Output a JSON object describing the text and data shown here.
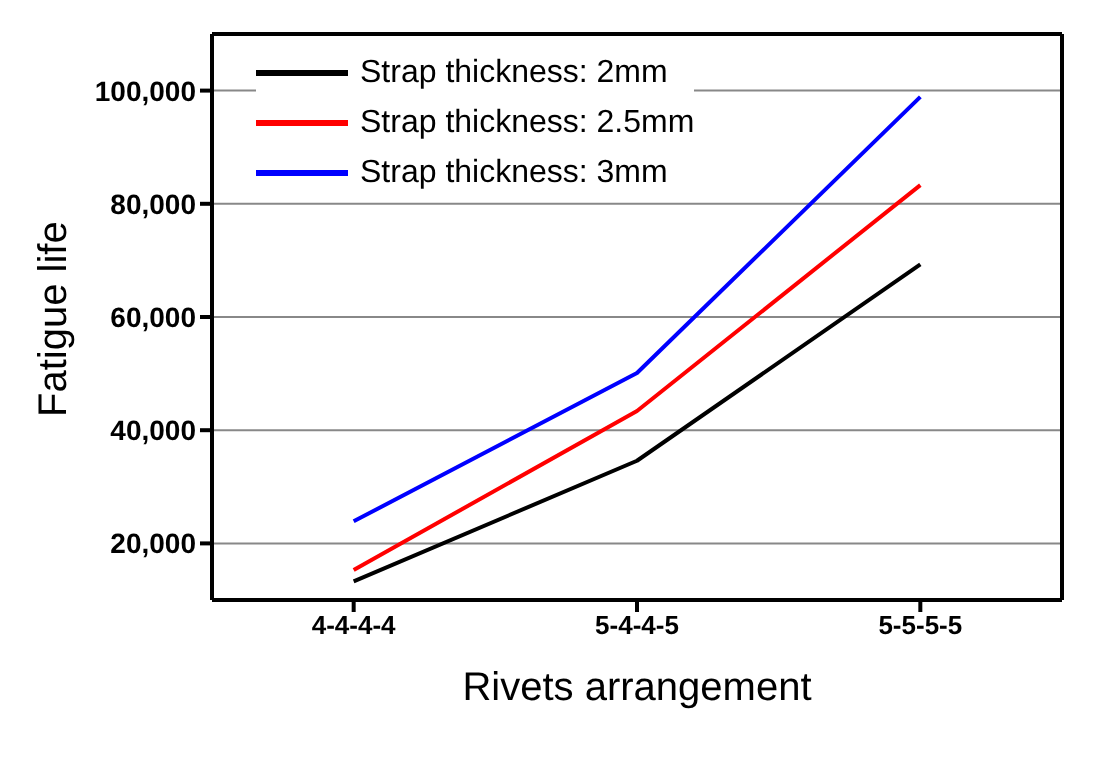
{
  "chart_data": {
    "type": "line",
    "xlabel": "Rivets arrangement",
    "ylabel": "Fatigue life",
    "categories": [
      "4-4-4-4",
      "5-4-4-5",
      "5-5-5-5"
    ],
    "series": [
      {
        "name": "Strap thickness: 2mm",
        "color": "#000000",
        "values": [
          13300,
          34600,
          69300
        ]
      },
      {
        "name": "Strap thickness: 2.5mm",
        "color": "#ff0000",
        "values": [
          15300,
          43400,
          83300
        ]
      },
      {
        "name": "Strap thickness: 3mm",
        "color": "#0000ff",
        "values": [
          23900,
          50100,
          98900
        ]
      }
    ],
    "ylim": [
      10000,
      110000
    ],
    "yticks": [
      {
        "value": 20000,
        "label": "20,000"
      },
      {
        "value": 40000,
        "label": "40,000"
      },
      {
        "value": 60000,
        "label": "60,000"
      },
      {
        "value": 80000,
        "label": "80,000"
      },
      {
        "value": 100000,
        "label": "100,000"
      }
    ],
    "grid": "y",
    "legend": "top left",
    "marker": "none",
    "line_style": "solid"
  }
}
